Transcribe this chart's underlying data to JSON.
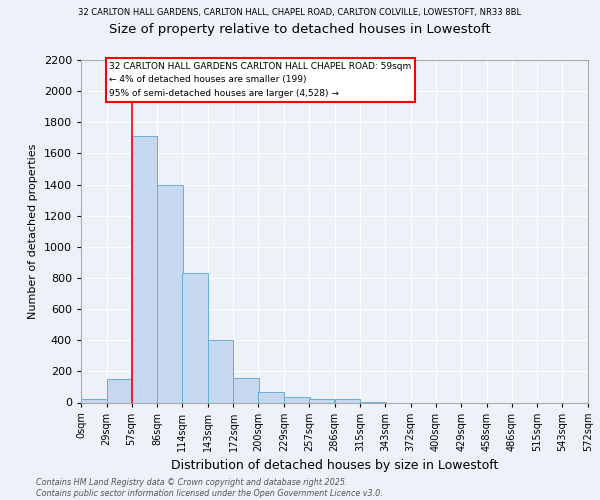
{
  "title_top": "32 CARLTON HALL GARDENS, CARLTON HALL, CHAPEL ROAD, CARLTON COLVILLE, LOWESTOFT, NR33 8BL",
  "title": "Size of property relative to detached houses in Lowestoft",
  "xlabel": "Distribution of detached houses by size in Lowestoft",
  "ylabel": "Number of detached properties",
  "bin_edges": [
    0,
    29,
    57,
    86,
    114,
    143,
    172,
    200,
    229,
    257,
    286,
    315,
    343,
    372,
    400,
    429,
    458,
    486,
    515,
    543,
    572
  ],
  "bin_labels": [
    "0sqm",
    "29sqm",
    "57sqm",
    "86sqm",
    "114sqm",
    "143sqm",
    "172sqm",
    "200sqm",
    "229sqm",
    "257sqm",
    "286sqm",
    "315sqm",
    "343sqm",
    "372sqm",
    "400sqm",
    "429sqm",
    "458sqm",
    "486sqm",
    "515sqm",
    "543sqm",
    "572sqm"
  ],
  "bar_heights": [
    20,
    150,
    1710,
    1400,
    830,
    400,
    160,
    65,
    35,
    25,
    25,
    5,
    0,
    0,
    0,
    0,
    0,
    0,
    0,
    0
  ],
  "bar_color": "#c5d8f0",
  "bar_edge_color": "#6aaed6",
  "red_line_x": 57,
  "ylim": [
    0,
    2200
  ],
  "yticks": [
    0,
    200,
    400,
    600,
    800,
    1000,
    1200,
    1400,
    1600,
    1800,
    2000,
    2200
  ],
  "annotation_line1": "32 CARLTON HALL GARDENS CARLTON HALL CHAPEL ROAD: 59sqm",
  "annotation_line2": "← 4% of detached houses are smaller (199)",
  "annotation_line3": "95% of semi-detached houses are larger (4,528) →",
  "footer_text": "Contains HM Land Registry data © Crown copyright and database right 2025.\nContains public sector information licensed under the Open Government Licence v3.0.",
  "background_color": "#edf2f9",
  "plot_bg_color": "#edf2f9",
  "grid_color": "#ffffff"
}
